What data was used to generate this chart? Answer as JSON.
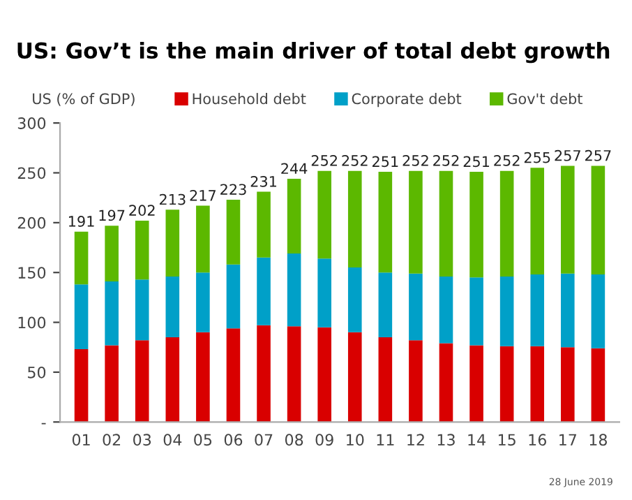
{
  "chart_data": {
    "type": "bar",
    "stacked": true,
    "title": "US: Gov’t is the main driver of total debt growth",
    "ylabel": "US (% of GDP)",
    "categories": [
      "01",
      "02",
      "03",
      "04",
      "05",
      "06",
      "07",
      "08",
      "09",
      "10",
      "11",
      "12",
      "13",
      "14",
      "15",
      "16",
      "17",
      "18"
    ],
    "series": [
      {
        "name": "Household debt",
        "color": "#d90000",
        "values": [
          73,
          77,
          82,
          85,
          90,
          94,
          97,
          96,
          95,
          90,
          85,
          82,
          79,
          77,
          76,
          76,
          75,
          74
        ]
      },
      {
        "name": "Corporate debt",
        "color": "#00a0c8",
        "values": [
          65,
          64,
          61,
          61,
          60,
          64,
          68,
          73,
          69,
          65,
          65,
          67,
          67,
          68,
          70,
          72,
          74,
          74
        ]
      },
      {
        "name": "Gov't debt",
        "color": "#5cb800",
        "values": [
          53,
          56,
          59,
          67,
          67,
          65,
          66,
          75,
          88,
          97,
          101,
          103,
          106,
          106,
          106,
          107,
          108,
          109
        ]
      }
    ],
    "totals": [
      "191",
      "197",
      "202",
      "213",
      "217",
      "223",
      "231",
      "244",
      "252",
      "252",
      "251",
      "252",
      "252",
      "251",
      "252",
      "255",
      "257",
      "257"
    ],
    "ylim": [
      0,
      300
    ],
    "yticks": [
      {
        "value": 0,
        "label": "-"
      },
      50,
      100,
      150,
      200,
      250,
      300
    ],
    "grid": false,
    "legend": "top",
    "annotations": [
      "28 June 2019"
    ]
  }
}
